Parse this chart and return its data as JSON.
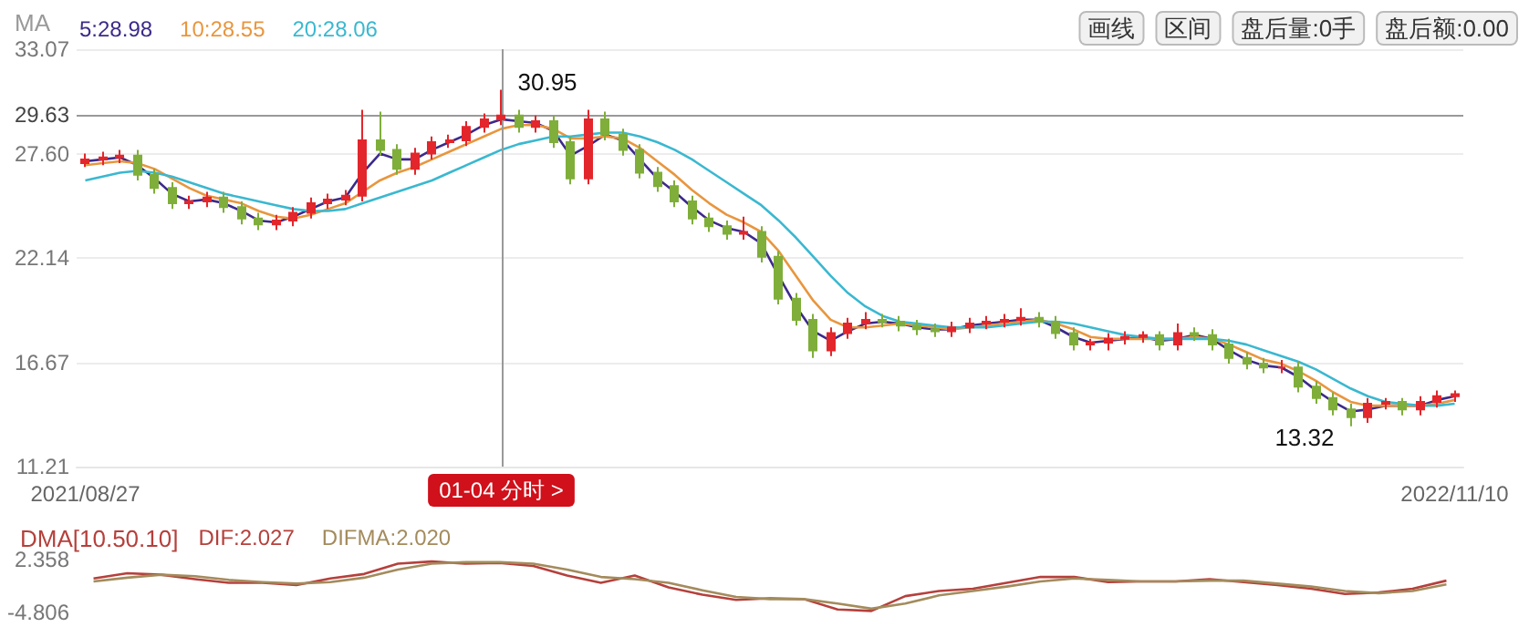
{
  "chart_data": [
    {
      "type": "candlestick",
      "legend_title": "MA",
      "categories": [
        "2021/08/27",
        null,
        null,
        null,
        null,
        null,
        null,
        null,
        null,
        null,
        null,
        null,
        null,
        null,
        null,
        null,
        null,
        null,
        null,
        null,
        null,
        null,
        null,
        null,
        null,
        null,
        null,
        null,
        null,
        null,
        null,
        null,
        null,
        null,
        null,
        null,
        null,
        null,
        null,
        null,
        null,
        null,
        null,
        null,
        null,
        null,
        null,
        null,
        null,
        null,
        null,
        null,
        null,
        null,
        null,
        null,
        null,
        null,
        null,
        null,
        null,
        null,
        null,
        null,
        null,
        null,
        null,
        null,
        null,
        null,
        null,
        null,
        null,
        null,
        null,
        null,
        null,
        null,
        null,
        "2022/11/10"
      ],
      "ohlc": [
        [
          27.1,
          27.6,
          26.9,
          27.3
        ],
        [
          27.3,
          27.7,
          27.0,
          27.4
        ],
        [
          27.4,
          27.8,
          27.1,
          27.5
        ],
        [
          27.5,
          27.8,
          26.2,
          26.5
        ],
        [
          26.5,
          26.8,
          25.5,
          25.8
        ],
        [
          25.8,
          26.1,
          24.7,
          25.0
        ],
        [
          25.0,
          25.4,
          24.7,
          25.1
        ],
        [
          25.1,
          25.6,
          24.8,
          25.3
        ],
        [
          25.3,
          25.6,
          24.5,
          24.8
        ],
        [
          24.8,
          25.1,
          23.9,
          24.2
        ],
        [
          24.2,
          24.5,
          23.6,
          23.9
        ],
        [
          23.9,
          24.4,
          23.6,
          24.1
        ],
        [
          24.1,
          24.8,
          23.8,
          24.5
        ],
        [
          24.5,
          25.3,
          24.2,
          25.0
        ],
        [
          25.0,
          25.5,
          24.7,
          25.2
        ],
        [
          25.2,
          25.7,
          24.9,
          25.4
        ],
        [
          25.4,
          29.9,
          25.1,
          28.3
        ],
        [
          28.3,
          29.8,
          27.5,
          27.8
        ],
        [
          27.8,
          28.1,
          26.5,
          26.8
        ],
        [
          26.8,
          27.9,
          26.5,
          27.6
        ],
        [
          27.6,
          28.5,
          27.3,
          28.2
        ],
        [
          28.2,
          28.6,
          27.9,
          28.3
        ],
        [
          28.3,
          29.3,
          28.0,
          29.0
        ],
        [
          29.0,
          29.7,
          28.7,
          29.4
        ],
        [
          29.4,
          30.95,
          29.1,
          29.6
        ],
        [
          29.6,
          29.9,
          28.7,
          29.0
        ],
        [
          29.0,
          29.6,
          28.7,
          29.3
        ],
        [
          29.3,
          29.6,
          27.9,
          28.2
        ],
        [
          28.2,
          28.5,
          26.0,
          26.3
        ],
        [
          26.3,
          29.9,
          26.0,
          29.4
        ],
        [
          29.4,
          29.8,
          28.3,
          28.6
        ],
        [
          28.6,
          28.9,
          27.5,
          27.8
        ],
        [
          27.8,
          28.1,
          26.3,
          26.6
        ],
        [
          26.6,
          26.9,
          25.6,
          25.9
        ],
        [
          25.9,
          26.2,
          24.8,
          25.1
        ],
        [
          25.1,
          25.4,
          23.9,
          24.2
        ],
        [
          24.2,
          24.5,
          23.5,
          23.8
        ],
        [
          23.8,
          24.1,
          23.1,
          23.4
        ],
        [
          23.4,
          24.3,
          23.1,
          23.5
        ],
        [
          23.5,
          23.8,
          21.9,
          22.2
        ],
        [
          22.2,
          22.5,
          19.7,
          20.0
        ],
        [
          20.0,
          20.3,
          18.6,
          18.9
        ],
        [
          18.9,
          19.2,
          16.9,
          17.3
        ],
        [
          17.3,
          18.5,
          17.0,
          18.2
        ],
        [
          18.2,
          19.0,
          17.9,
          18.7
        ],
        [
          18.7,
          19.3,
          18.4,
          18.9
        ],
        [
          18.9,
          19.2,
          18.5,
          18.8
        ],
        [
          18.8,
          19.1,
          18.3,
          18.6
        ],
        [
          18.6,
          18.9,
          18.1,
          18.4
        ],
        [
          18.4,
          18.7,
          18.0,
          18.3
        ],
        [
          18.3,
          18.8,
          18.0,
          18.5
        ],
        [
          18.5,
          19.0,
          18.2,
          18.7
        ],
        [
          18.7,
          19.1,
          18.4,
          18.8
        ],
        [
          18.8,
          19.2,
          18.5,
          18.9
        ],
        [
          18.9,
          19.5,
          18.6,
          19.0
        ],
        [
          19.0,
          19.3,
          18.5,
          18.8
        ],
        [
          18.8,
          19.1,
          17.9,
          18.2
        ],
        [
          18.2,
          18.5,
          17.3,
          17.6
        ],
        [
          17.6,
          17.9,
          17.3,
          17.7
        ],
        [
          17.7,
          18.2,
          17.3,
          17.9
        ],
        [
          17.9,
          18.3,
          17.6,
          18.0
        ],
        [
          18.0,
          18.3,
          17.7,
          18.1
        ],
        [
          18.1,
          18.3,
          17.3,
          17.6
        ],
        [
          17.6,
          18.7,
          17.3,
          18.2
        ],
        [
          18.2,
          18.5,
          17.8,
          18.1
        ],
        [
          18.1,
          18.4,
          17.3,
          17.6
        ],
        [
          17.6,
          17.9,
          16.6,
          16.9
        ],
        [
          16.9,
          17.2,
          16.3,
          16.6
        ],
        [
          16.6,
          16.9,
          16.1,
          16.4
        ],
        [
          16.4,
          16.8,
          16.1,
          16.4
        ],
        [
          16.4,
          16.7,
          15.1,
          15.4
        ],
        [
          15.4,
          15.7,
          14.5,
          14.8
        ],
        [
          14.8,
          15.1,
          13.9,
          14.2
        ],
        [
          14.2,
          14.5,
          13.32,
          13.8
        ],
        [
          13.8,
          14.8,
          13.5,
          14.5
        ],
        [
          14.5,
          14.8,
          14.2,
          14.6
        ],
        [
          14.6,
          14.8,
          13.9,
          14.2
        ],
        [
          14.2,
          14.9,
          13.9,
          14.6
        ],
        [
          14.6,
          15.2,
          14.3,
          14.9
        ],
        [
          14.9,
          15.2,
          14.6,
          15.0
        ]
      ],
      "series": [
        {
          "name": "5:28.98",
          "type": "line",
          "color": "#3d2a8a",
          "values": [
            27.2,
            27.3,
            27.4,
            27.0,
            26.3,
            25.5,
            25.1,
            25.2,
            25.0,
            24.6,
            24.1,
            24.0,
            24.3,
            24.7,
            25.1,
            25.3,
            26.6,
            27.6,
            27.3,
            27.3,
            27.8,
            28.2,
            28.6,
            29.1,
            29.4,
            29.3,
            29.2,
            28.8,
            27.5,
            28.0,
            28.6,
            28.3,
            27.3,
            26.3,
            25.6,
            24.8,
            24.1,
            23.7,
            23.5,
            22.9,
            21.2,
            19.6,
            18.3,
            17.8,
            18.3,
            18.7,
            18.8,
            18.7,
            18.5,
            18.4,
            18.4,
            18.6,
            18.7,
            18.8,
            18.9,
            18.9,
            18.5,
            18.0,
            17.7,
            17.8,
            17.9,
            18.0,
            17.8,
            17.9,
            18.1,
            17.9,
            17.3,
            16.8,
            16.5,
            16.4,
            15.9,
            15.2,
            14.6,
            14.1,
            14.2,
            14.4,
            14.4,
            14.4,
            14.7,
            14.9
          ]
        },
        {
          "name": "10:28.55",
          "type": "line",
          "color": "#e8963e",
          "values": [
            27.0,
            27.1,
            27.2,
            27.1,
            26.8,
            26.3,
            25.8,
            25.4,
            25.2,
            25.0,
            24.6,
            24.3,
            24.2,
            24.4,
            24.7,
            25.0,
            25.6,
            26.2,
            26.6,
            26.9,
            27.3,
            27.7,
            28.1,
            28.5,
            28.9,
            29.1,
            29.1,
            28.9,
            28.4,
            28.4,
            28.5,
            28.4,
            27.9,
            27.2,
            26.5,
            25.7,
            25.0,
            24.4,
            24.0,
            23.5,
            22.5,
            21.2,
            19.9,
            18.9,
            18.5,
            18.5,
            18.6,
            18.7,
            18.6,
            18.5,
            18.4,
            18.5,
            18.6,
            18.7,
            18.8,
            18.9,
            18.7,
            18.4,
            18.0,
            17.9,
            17.9,
            17.9,
            17.9,
            17.9,
            18.0,
            17.9,
            17.6,
            17.2,
            16.8,
            16.6,
            16.2,
            15.7,
            15.1,
            14.6,
            14.4,
            14.4,
            14.4,
            14.4,
            14.5,
            14.7
          ]
        },
        {
          "name": "20:28.06",
          "type": "line",
          "color": "#3ab8d0",
          "values": [
            26.2,
            26.4,
            26.6,
            26.7,
            26.6,
            26.4,
            26.1,
            25.8,
            25.5,
            25.3,
            25.1,
            24.9,
            24.7,
            24.6,
            24.6,
            24.7,
            25.0,
            25.3,
            25.6,
            25.9,
            26.2,
            26.6,
            27.0,
            27.4,
            27.8,
            28.1,
            28.3,
            28.5,
            28.5,
            28.6,
            28.7,
            28.7,
            28.5,
            28.2,
            27.8,
            27.3,
            26.7,
            26.1,
            25.5,
            24.9,
            24.1,
            23.2,
            22.2,
            21.2,
            20.3,
            19.6,
            19.1,
            18.8,
            18.7,
            18.6,
            18.5,
            18.5,
            18.5,
            18.6,
            18.7,
            18.8,
            18.8,
            18.7,
            18.5,
            18.3,
            18.1,
            18.0,
            17.9,
            17.9,
            17.9,
            17.9,
            17.8,
            17.6,
            17.3,
            17.0,
            16.7,
            16.3,
            15.8,
            15.3,
            14.9,
            14.6,
            14.5,
            14.4,
            14.4,
            14.5
          ]
        }
      ],
      "ylim": [
        11.21,
        33.07
      ],
      "yticks": [
        33.07,
        {
          "value": 27.6,
          "label": "27.60"
        },
        22.14,
        16.67,
        11.21
      ],
      "grid": "y",
      "legend": "top left",
      "marker": "none",
      "ref_lines": [
        {
          "axis": "y",
          "value": 29.63,
          "label": "29.63"
        }
      ],
      "annotations": [
        "01-04 分时 >",
        "画线",
        "区间",
        "盘后量:0手",
        "盘后额:0.00",
        "30.95",
        "13.32"
      ]
    },
    {
      "type": "line",
      "title": "DMA[10.50.10]",
      "categories": [
        null,
        null,
        null,
        null,
        null,
        null,
        null,
        null,
        null,
        null,
        null,
        null,
        null,
        null,
        null,
        null,
        null,
        null,
        null,
        null,
        null,
        null,
        null,
        null,
        null,
        null,
        null,
        null,
        null,
        null,
        null,
        null,
        null,
        null,
        null,
        null,
        null,
        null,
        null,
        null,
        null
      ],
      "series": [
        {
          "name": "DIF:2.027",
          "color": "#b5403c",
          "values": [
            -0.2,
            0.5,
            0.3,
            -0.3,
            -0.8,
            -0.8,
            -1.1,
            -0.2,
            0.4,
            1.8,
            2.1,
            1.8,
            1.9,
            1.5,
            0.2,
            -0.8,
            0.2,
            -1.4,
            -2.4,
            -3.1,
            -2.9,
            -3.0,
            -4.4,
            -4.6,
            -2.6,
            -1.9,
            -1.6,
            -0.8,
            0.0,
            0.0,
            -0.7,
            -0.6,
            -0.6,
            -0.3,
            -0.7,
            -1.1,
            -1.6,
            -2.3,
            -2.1,
            -1.6,
            -0.5
          ]
        },
        {
          "name": "DIFMA:2.020",
          "color": "#a38b5c",
          "values": [
            -0.6,
            -0.1,
            0.3,
            0.1,
            -0.4,
            -0.7,
            -0.9,
            -0.7,
            -0.1,
            1.0,
            1.8,
            2.0,
            2.0,
            1.8,
            1.0,
            0.0,
            -0.3,
            -0.8,
            -1.8,
            -2.7,
            -3.0,
            -3.0,
            -3.6,
            -4.3,
            -3.6,
            -2.5,
            -1.9,
            -1.3,
            -0.6,
            -0.2,
            -0.4,
            -0.6,
            -0.6,
            -0.5,
            -0.5,
            -0.9,
            -1.3,
            -1.9,
            -2.2,
            -1.9,
            -1.0
          ]
        }
      ],
      "ylim": [
        -4.806,
        2.358
      ],
      "yticks": [
        2.358,
        -4.806
      ],
      "grid": false,
      "legend": "top left",
      "tick_labels": "y",
      "marker": "none"
    }
  ]
}
